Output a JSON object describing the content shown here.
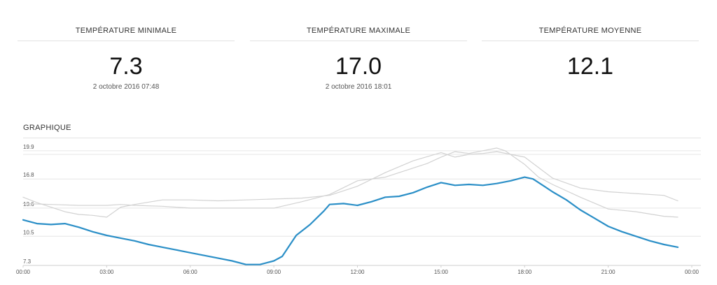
{
  "stats": [
    {
      "title": "Température minimale",
      "value": "7.3",
      "sub": "2 octobre 2016 07:48"
    },
    {
      "title": "Température maximale",
      "value": "17.0",
      "sub": "2 octobre 2016 18:01"
    },
    {
      "title": "Température moyenne",
      "value": "12.1",
      "sub": ""
    }
  ],
  "section_title": "GRAPHIQUE",
  "chart_data": {
    "type": "line",
    "title": "",
    "xlabel": "",
    "ylabel": "",
    "xlim": [
      0,
      24
    ],
    "ylim": [
      7.3,
      20.5
    ],
    "y_ticks": [
      7.3,
      10.5,
      13.6,
      16.8,
      19.9
    ],
    "x_ticks": [
      "00:00",
      "03:00",
      "06:00",
      "09:00",
      "12:00",
      "15:00",
      "18:00",
      "21:00",
      "00:00"
    ],
    "grid": true,
    "colors": {
      "primary": "#2b8fc7",
      "secondary": "#d2d2d2"
    },
    "series": [
      {
        "x": [
          0,
          0.5,
          1,
          1.5,
          2,
          2.5,
          3,
          3.5,
          4,
          4.5,
          5,
          5.5,
          6,
          6.5,
          7,
          7.5,
          8,
          8.5,
          9,
          9.3,
          9.8,
          10.3,
          10.8,
          11,
          11.5,
          12,
          12.5,
          13,
          13.5,
          14,
          14.5,
          15,
          15.5,
          16,
          16.5,
          17,
          17.5,
          18,
          18.3,
          18.7,
          19,
          19.5,
          20,
          20.5,
          21,
          21.5,
          22,
          22.5,
          23,
          23.5
        ],
        "y": [
          12.3,
          11.9,
          11.8,
          11.9,
          11.5,
          11.0,
          10.6,
          10.3,
          10.0,
          9.6,
          9.3,
          9.0,
          8.7,
          8.4,
          8.1,
          7.8,
          7.4,
          7.4,
          7.8,
          8.3,
          10.6,
          11.8,
          13.3,
          14.0,
          14.1,
          13.9,
          14.3,
          14.8,
          14.9,
          15.3,
          15.9,
          16.4,
          16.1,
          16.2,
          16.1,
          16.3,
          16.6,
          17.0,
          16.8,
          16.0,
          15.4,
          14.5,
          13.4,
          12.5,
          11.6,
          11.0,
          10.5,
          10.0,
          9.6,
          9.3
        ]
      },
      {
        "x": [
          0,
          0.5,
          1,
          1.5,
          2,
          2.5,
          3,
          3.5,
          4,
          5,
          6,
          7,
          8,
          9,
          10,
          11,
          12,
          13,
          14,
          15,
          15.5,
          16,
          16.5,
          17,
          17.5,
          18,
          19,
          20,
          21,
          22,
          23,
          23.5
        ],
        "y": [
          14.8,
          14.2,
          13.7,
          13.2,
          12.9,
          12.8,
          12.6,
          13.7,
          14.0,
          14.5,
          14.5,
          14.4,
          14.5,
          14.6,
          14.7,
          15.0,
          16.0,
          17.5,
          18.8,
          19.7,
          19.2,
          19.5,
          19.6,
          19.8,
          19.5,
          19.2,
          16.9,
          15.8,
          15.4,
          15.2,
          15.0,
          14.4
        ]
      },
      {
        "x": [
          0,
          1,
          2,
          3,
          3.5,
          4,
          5,
          6,
          7,
          8,
          9,
          10,
          11,
          12,
          13,
          14,
          14.5,
          15,
          15.5,
          16,
          16.5,
          17,
          17.3,
          18,
          18.5,
          19,
          20,
          21,
          22,
          23,
          23.5
        ],
        "y": [
          14.1,
          14.0,
          13.9,
          13.9,
          14.0,
          13.9,
          13.8,
          13.6,
          13.6,
          13.6,
          13.6,
          14.3,
          15.1,
          16.6,
          17.0,
          18.0,
          18.5,
          19.2,
          19.8,
          19.6,
          19.9,
          20.2,
          19.9,
          18.4,
          17.0,
          16.2,
          14.8,
          13.5,
          13.2,
          12.7,
          12.6
        ]
      }
    ]
  }
}
